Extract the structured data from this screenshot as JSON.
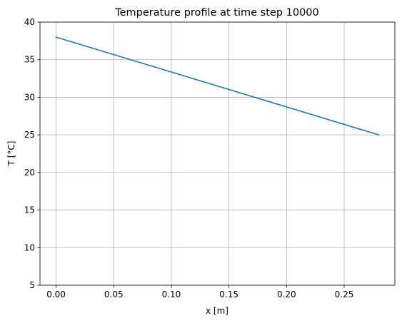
{
  "chart_data": {
    "type": "line",
    "title": "Temperature profile at time step 10000",
    "xlabel": "x [m]",
    "ylabel": "T [°C]",
    "xlim": [
      -0.014,
      0.294
    ],
    "ylim": [
      5,
      40
    ],
    "x_ticks": [
      0.0,
      0.05,
      0.1,
      0.15,
      0.2,
      0.25
    ],
    "x_tick_labels": [
      "0.00",
      "0.05",
      "0.10",
      "0.15",
      "0.20",
      "0.25"
    ],
    "y_ticks": [
      5,
      10,
      15,
      20,
      25,
      30,
      35,
      40
    ],
    "y_tick_labels": [
      "5",
      "10",
      "15",
      "20",
      "25",
      "30",
      "35",
      "40"
    ],
    "grid": true,
    "series": [
      {
        "color": "#1f77b4",
        "x": [
          0.0,
          0.28
        ],
        "y": [
          38.0,
          25.0
        ]
      }
    ]
  }
}
